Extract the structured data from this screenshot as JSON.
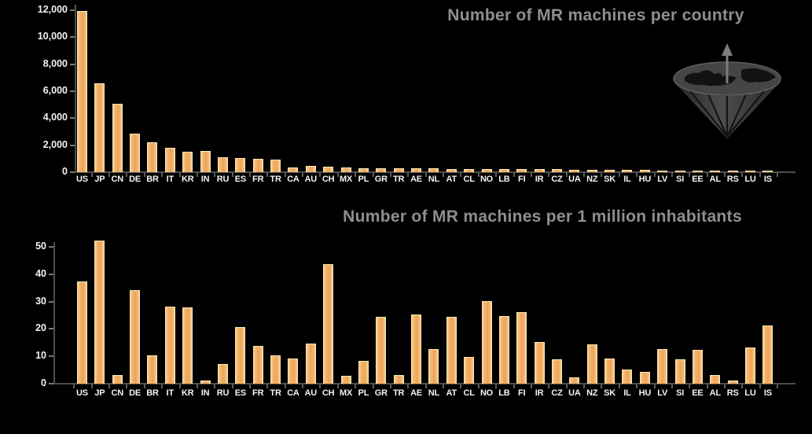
{
  "slide": {
    "background": "#000000"
  },
  "colors": {
    "background": "#000000",
    "bar_fill": "#f1b26b",
    "bar_edge": "#fde3a9",
    "axis": "#4e4e4e",
    "tick_label": "#f3f3f3",
    "title_gray": "#8f8f8f",
    "logo_gray": "#454543"
  },
  "icons": {
    "logo": "globe-diamond-logo"
  },
  "chart_data": [
    {
      "type": "bar",
      "title": "Number of MR machines per country",
      "categories": [
        "US",
        "JP",
        "CN",
        "DE",
        "BR",
        "IT",
        "KR",
        "IN",
        "RU",
        "ES",
        "FR",
        "TR",
        "CA",
        "AU",
        "CH",
        "MX",
        "PL",
        "GR",
        "TR",
        "AE",
        "NL",
        "AT",
        "CL",
        "NO",
        "LB",
        "FI",
        "IR",
        "CZ",
        "UA",
        "NZ",
        "SK",
        "IL",
        "HU",
        "LV",
        "SI",
        "EE",
        "AL",
        "RS",
        "LU",
        "IS"
      ],
      "values": [
        11900,
        6550,
        5000,
        2820,
        2160,
        1750,
        1450,
        1500,
        1050,
        980,
        950,
        860,
        310,
        390,
        370,
        280,
        260,
        240,
        230,
        215,
        210,
        200,
        190,
        185,
        175,
        165,
        160,
        150,
        140,
        130,
        120,
        110,
        95,
        70,
        60,
        55,
        45,
        35,
        25,
        15
      ],
      "xlabel": "",
      "ylabel": "",
      "ylim": [
        0,
        12000
      ],
      "yticks": [
        0,
        2000,
        4000,
        6000,
        8000,
        10000,
        12000
      ],
      "ytick_labels": [
        "0",
        "2,000",
        "4,000",
        "6,000",
        "8,000",
        "10,000",
        "12,000"
      ],
      "grid": false,
      "legend": false
    },
    {
      "type": "bar",
      "title": "Number of MR machines per 1 million inhabitants",
      "categories": [
        "US",
        "JP",
        "CN",
        "DE",
        "BR",
        "IT",
        "KR",
        "IN",
        "RU",
        "ES",
        "FR",
        "TR",
        "CA",
        "AU",
        "CH",
        "MX",
        "PL",
        "GR",
        "TR",
        "AE",
        "NL",
        "AT",
        "CL",
        "NO",
        "LB",
        "FI",
        "IR",
        "CZ",
        "UA",
        "NZ",
        "SK",
        "IL",
        "HU",
        "LV",
        "SI",
        "EE",
        "AL",
        "RS",
        "LU",
        "IS"
      ],
      "values": [
        37,
        52,
        3,
        34,
        10,
        28,
        27.5,
        1,
        7,
        20.5,
        13.5,
        10,
        9,
        14.5,
        43.5,
        2.5,
        8,
        24,
        3,
        25,
        12.5,
        24,
        9.5,
        30,
        24.5,
        26,
        15,
        8.5,
        2,
        14,
        9,
        5,
        4,
        12.5,
        8.5,
        12,
        3,
        1,
        13,
        21
      ],
      "xlabel": "",
      "ylabel": "",
      "ylim": [
        0,
        55
      ],
      "yticks": [
        0,
        10,
        20,
        30,
        40,
        50
      ],
      "ytick_labels": [
        "0",
        "10",
        "20",
        "30",
        "40",
        "50"
      ],
      "grid": false,
      "legend": false
    }
  ]
}
